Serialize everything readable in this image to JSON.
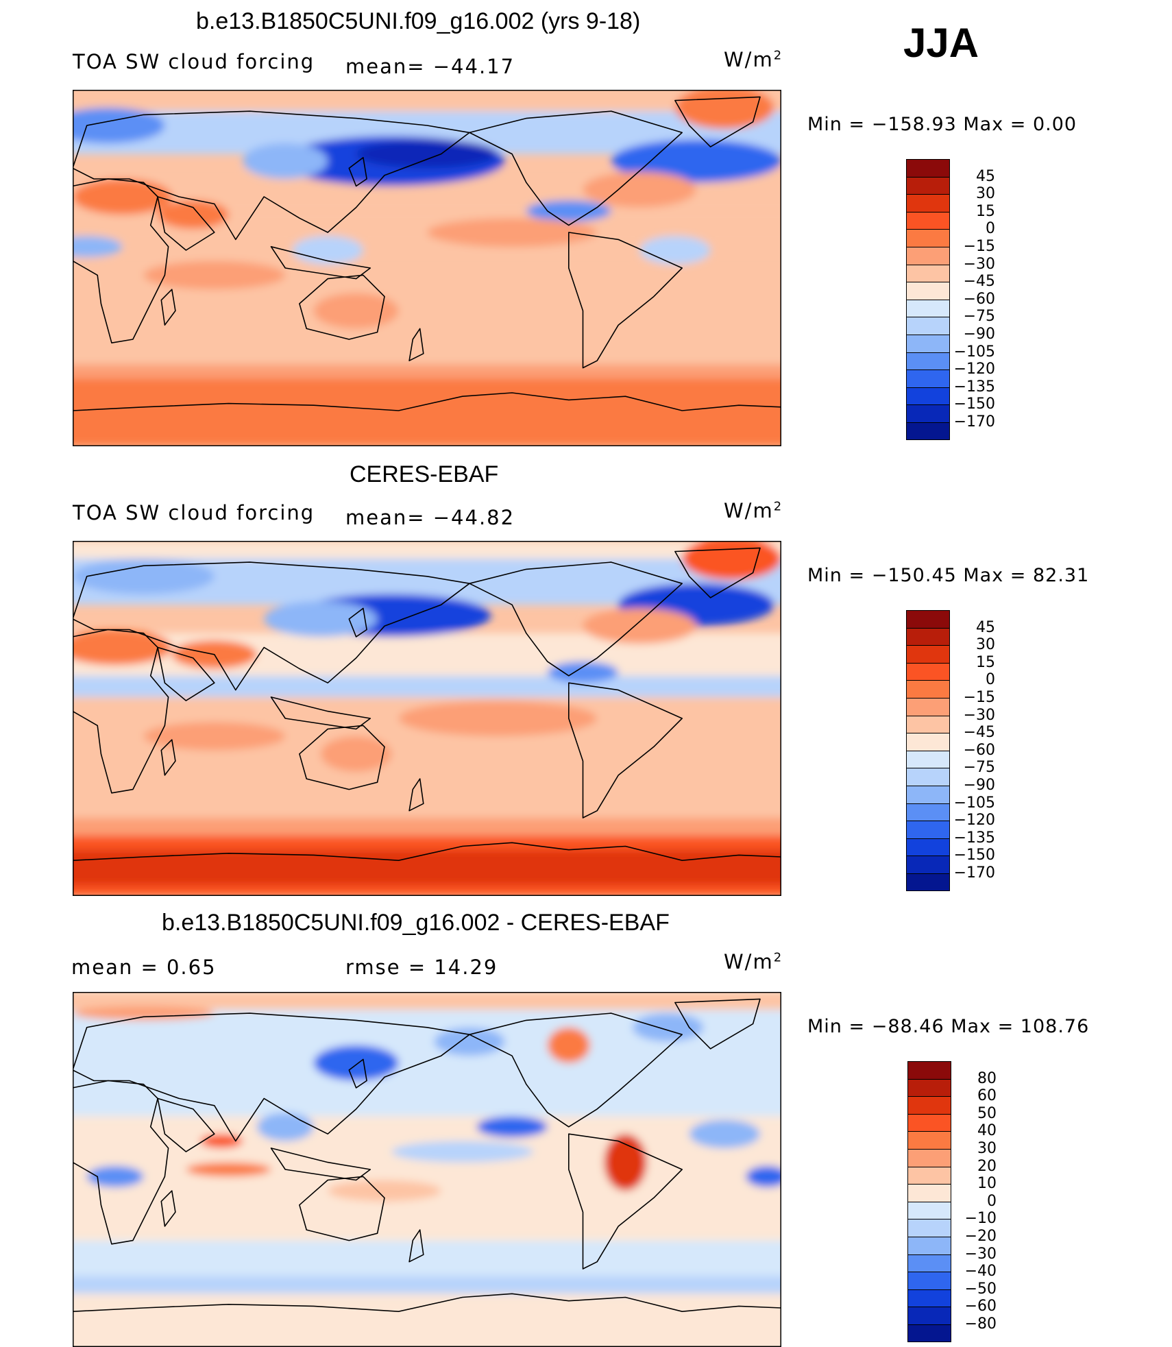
{
  "season": "JJA",
  "unit_text": "W/m",
  "unit_sup": "2",
  "panels": [
    {
      "title": "b.e13.B1850C5UNI.f09_g16.002 (yrs 9-18)",
      "left_label": "TOA SW cloud forcing",
      "center_label": "mean= −44.17",
      "minmax": "Min  =  −158.93  Max  =     0.00"
    },
    {
      "title": "CERES-EBAF",
      "left_label": "TOA SW cloud forcing",
      "center_label": "mean= −44.82",
      "minmax": "Min  =  −150.45  Max  =   82.31"
    },
    {
      "title": "b.e13.B1850C5UNI.f09_g16.002 - CERES-EBAF",
      "left_label": "mean  =     0.65",
      "center_label": "rmse  =    14.29",
      "minmax": "Min  =  −88.46  Max  =  108.76"
    }
  ],
  "chart_data": [
    {
      "type": "heatmap",
      "title": "b.e13.B1850C5UNI.f09_g16.002 (yrs 9-18)",
      "variable": "TOA SW cloud forcing",
      "mean": -44.17,
      "min": -158.93,
      "max": 0.0,
      "unit": "W/m2",
      "levels": [
        "45",
        "30",
        "15",
        "0",
        "−15",
        "−30",
        "−45",
        "−60",
        "−75",
        "−90",
        "−105",
        "−120",
        "−135",
        "−150",
        "−170"
      ],
      "colors": [
        "#8b0a0a",
        "#b81e0a",
        "#e0360e",
        "#fb5424",
        "#fb7a42",
        "#fc9f76",
        "#fdc4a4",
        "#fde7d6",
        "#d6e8fb",
        "#b7d3fb",
        "#8db6f8",
        "#5b8ff5",
        "#2f66ef",
        "#1242dd",
        "#0828b8",
        "#041690"
      ]
    },
    {
      "type": "heatmap",
      "title": "CERES-EBAF",
      "variable": "TOA SW cloud forcing",
      "mean": -44.82,
      "min": -150.45,
      "max": 82.31,
      "unit": "W/m2",
      "levels": [
        "45",
        "30",
        "15",
        "0",
        "−15",
        "−30",
        "−45",
        "−60",
        "−75",
        "−90",
        "−105",
        "−120",
        "−135",
        "−150",
        "−170"
      ],
      "colors": [
        "#8b0a0a",
        "#b81e0a",
        "#e0360e",
        "#fb5424",
        "#fb7a42",
        "#fc9f76",
        "#fdc4a4",
        "#fde7d6",
        "#d6e8fb",
        "#b7d3fb",
        "#8db6f8",
        "#5b8ff5",
        "#2f66ef",
        "#1242dd",
        "#0828b8",
        "#041690"
      ]
    },
    {
      "type": "heatmap",
      "title": "b.e13.B1850C5UNI.f09_g16.002 - CERES-EBAF",
      "mean": 0.65,
      "rmse": 14.29,
      "min": -88.46,
      "max": 108.76,
      "unit": "W/m2",
      "levels": [
        "80",
        "60",
        "50",
        "40",
        "30",
        "20",
        "10",
        "0",
        "−10",
        "−20",
        "−30",
        "−40",
        "−50",
        "−60",
        "−80"
      ],
      "colors": [
        "#8b0a0a",
        "#b81e0a",
        "#e0360e",
        "#fb5424",
        "#fb7a42",
        "#fc9f76",
        "#fdc4a4",
        "#fde7d6",
        "#d6e8fb",
        "#b7d3fb",
        "#8db6f8",
        "#5b8ff5",
        "#2f66ef",
        "#1242dd",
        "#0828b8",
        "#041690"
      ]
    }
  ]
}
